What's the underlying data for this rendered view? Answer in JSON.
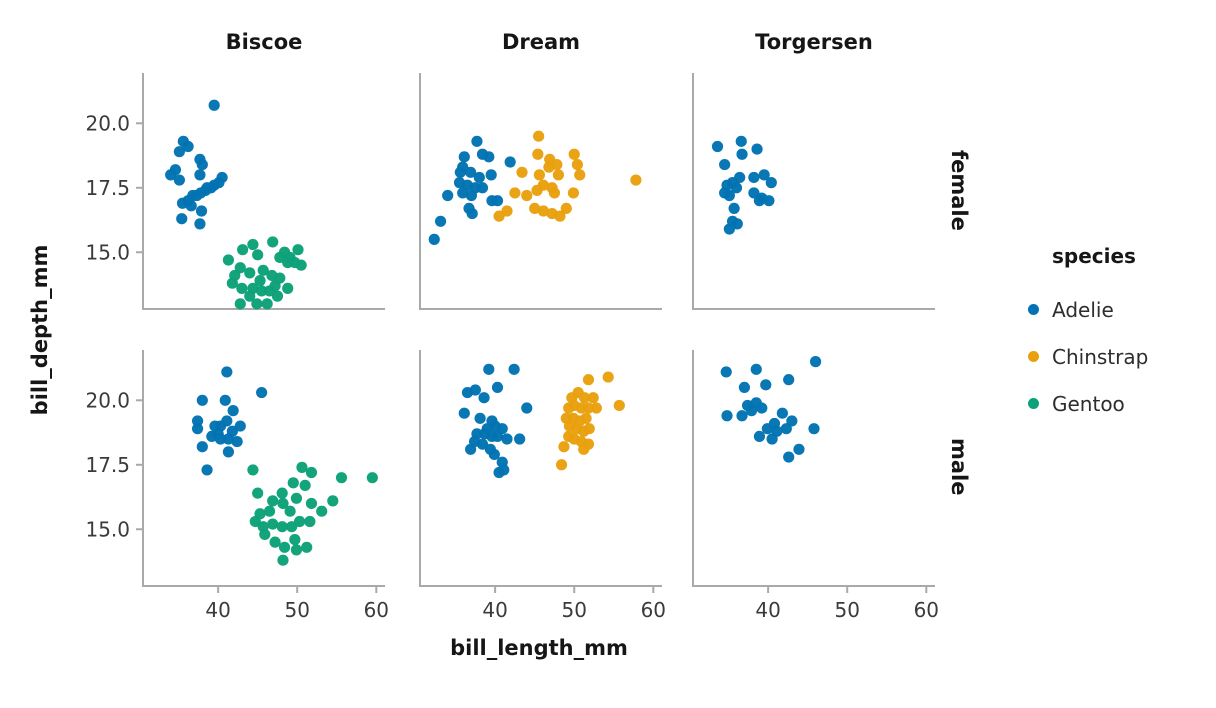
{
  "chart_data": {
    "type": "scatter",
    "title": "",
    "xlabel": "bill_length_mm",
    "ylabel": "bill_depth_mm",
    "facet_columns": [
      "Biscoe",
      "Dream",
      "Torgersen"
    ],
    "facet_rows": [
      "female",
      "male"
    ],
    "x_ticks": [
      40,
      50,
      60
    ],
    "x_tick_labels": [
      "40",
      "50",
      "60"
    ],
    "y_ticks": [
      20.0,
      17.5,
      15.0
    ],
    "y_tick_labels": [
      "20.0",
      "17.5",
      "15.0"
    ],
    "xlim": [
      30.5,
      61.1
    ],
    "ylim": [
      12.8,
      21.95
    ],
    "grid": false,
    "legend": {
      "title": "species",
      "position": "right",
      "entries": [
        {
          "label": "Adelie",
          "color": "#0173b2"
        },
        {
          "label": "Chinstrap",
          "color": "#e8a00d"
        },
        {
          "label": "Gentoo",
          "color": "#0ca178"
        }
      ]
    },
    "series": [
      {
        "facet_col": "Biscoe",
        "facet_row": "female",
        "species": "Adelie",
        "points": [
          [
            39.5,
            20.7
          ],
          [
            35.6,
            19.3
          ],
          [
            36.2,
            19.1
          ],
          [
            35.1,
            18.9
          ],
          [
            37.7,
            18.6
          ],
          [
            38.0,
            18.4
          ],
          [
            34.6,
            18.2
          ],
          [
            34.0,
            18.0
          ],
          [
            37.7,
            18.0
          ],
          [
            40.5,
            17.9
          ],
          [
            35.1,
            17.8
          ],
          [
            40.1,
            17.7
          ],
          [
            39.5,
            17.6
          ],
          [
            38.6,
            17.5
          ],
          [
            39.1,
            17.5
          ],
          [
            38.4,
            17.4
          ],
          [
            37.8,
            17.3
          ],
          [
            37.3,
            17.2
          ],
          [
            36.8,
            17.2
          ],
          [
            36.2,
            17.0
          ],
          [
            35.5,
            16.9
          ],
          [
            36.6,
            16.8
          ],
          [
            37.9,
            16.6
          ],
          [
            35.4,
            16.3
          ],
          [
            37.7,
            16.1
          ]
        ]
      },
      {
        "facet_col": "Biscoe",
        "facet_row": "female",
        "species": "Gentoo",
        "points": [
          [
            43.1,
            15.1
          ],
          [
            46.9,
            15.4
          ],
          [
            50.1,
            15.1
          ],
          [
            44.4,
            15.3
          ],
          [
            48.4,
            15.0
          ],
          [
            41.3,
            14.7
          ],
          [
            45.0,
            14.9
          ],
          [
            47.8,
            14.8
          ],
          [
            49.7,
            14.6
          ],
          [
            48.8,
            14.6
          ],
          [
            42.8,
            14.4
          ],
          [
            44.0,
            14.2
          ],
          [
            45.7,
            14.3
          ],
          [
            42.1,
            14.1
          ],
          [
            46.8,
            14.1
          ],
          [
            47.8,
            14.0
          ],
          [
            45.3,
            13.9
          ],
          [
            41.8,
            13.8
          ],
          [
            43.0,
            13.6
          ],
          [
            44.4,
            13.6
          ],
          [
            45.5,
            13.5
          ],
          [
            46.5,
            13.5
          ],
          [
            47.2,
            13.7
          ],
          [
            47.5,
            13.3
          ],
          [
            48.8,
            13.6
          ],
          [
            44.0,
            13.3
          ],
          [
            42.8,
            13.0
          ],
          [
            44.9,
            13.0
          ],
          [
            46.2,
            13.0
          ],
          [
            50.5,
            14.5
          ],
          [
            49.1,
            14.8
          ]
        ]
      },
      {
        "facet_col": "Dream",
        "facet_row": "female",
        "species": "Adelie",
        "points": [
          [
            37.7,
            19.3
          ],
          [
            36.1,
            18.7
          ],
          [
            38.4,
            18.8
          ],
          [
            39.2,
            18.7
          ],
          [
            35.9,
            18.3
          ],
          [
            35.6,
            18.1
          ],
          [
            36.9,
            18.1
          ],
          [
            38.0,
            17.9
          ],
          [
            39.5,
            18.0
          ],
          [
            35.5,
            17.7
          ],
          [
            36.5,
            17.6
          ],
          [
            37.5,
            17.5
          ],
          [
            38.4,
            17.5
          ],
          [
            35.9,
            17.3
          ],
          [
            37.0,
            17.2
          ],
          [
            39.6,
            17.0
          ],
          [
            40.3,
            17.0
          ],
          [
            36.7,
            16.7
          ],
          [
            37.1,
            16.5
          ],
          [
            34.0,
            17.2
          ],
          [
            33.1,
            16.2
          ],
          [
            32.3,
            15.5
          ],
          [
            41.9,
            18.5
          ]
        ]
      },
      {
        "facet_col": "Dream",
        "facet_row": "female",
        "species": "Chinstrap",
        "points": [
          [
            45.5,
            19.5
          ],
          [
            45.4,
            18.8
          ],
          [
            46.9,
            18.6
          ],
          [
            47.8,
            18.4
          ],
          [
            50.0,
            18.8
          ],
          [
            50.4,
            18.4
          ],
          [
            43.4,
            18.1
          ],
          [
            45.6,
            18.0
          ],
          [
            46.8,
            18.3
          ],
          [
            48.0,
            18.0
          ],
          [
            50.7,
            18.0
          ],
          [
            57.8,
            17.8
          ],
          [
            42.5,
            17.3
          ],
          [
            44.0,
            17.2
          ],
          [
            45.3,
            17.4
          ],
          [
            46.1,
            17.6
          ],
          [
            47.2,
            17.5
          ],
          [
            47.5,
            17.3
          ],
          [
            49.9,
            17.3
          ],
          [
            45.0,
            16.7
          ],
          [
            46.1,
            16.6
          ],
          [
            47.2,
            16.5
          ],
          [
            48.2,
            16.4
          ],
          [
            49.0,
            16.7
          ],
          [
            41.5,
            16.6
          ],
          [
            40.5,
            16.4
          ]
        ]
      },
      {
        "facet_col": "Torgersen",
        "facet_row": "female",
        "species": "Adelie",
        "points": [
          [
            33.6,
            19.1
          ],
          [
            36.6,
            19.3
          ],
          [
            36.7,
            18.8
          ],
          [
            38.6,
            19.0
          ],
          [
            34.5,
            18.4
          ],
          [
            36.4,
            17.9
          ],
          [
            38.2,
            17.9
          ],
          [
            39.5,
            18.0
          ],
          [
            40.4,
            17.7
          ],
          [
            34.8,
            17.6
          ],
          [
            35.5,
            17.7
          ],
          [
            36.0,
            17.5
          ],
          [
            34.5,
            17.3
          ],
          [
            35.1,
            17.2
          ],
          [
            38.2,
            17.3
          ],
          [
            39.2,
            17.1
          ],
          [
            40.1,
            17.0
          ],
          [
            35.7,
            16.7
          ],
          [
            38.9,
            17.0
          ],
          [
            35.5,
            16.2
          ],
          [
            36.1,
            16.1
          ],
          [
            35.1,
            15.9
          ]
        ]
      },
      {
        "facet_col": "Biscoe",
        "facet_row": "male",
        "species": "Adelie",
        "points": [
          [
            41.1,
            21.1
          ],
          [
            45.5,
            20.3
          ],
          [
            38.0,
            20.0
          ],
          [
            40.9,
            20.0
          ],
          [
            41.9,
            19.6
          ],
          [
            37.4,
            19.2
          ],
          [
            37.4,
            18.9
          ],
          [
            39.6,
            19.0
          ],
          [
            40.3,
            19.0
          ],
          [
            41.1,
            19.2
          ],
          [
            42.8,
            19.0
          ],
          [
            40.0,
            18.7
          ],
          [
            40.3,
            18.5
          ],
          [
            41.3,
            18.5
          ],
          [
            42.4,
            18.4
          ],
          [
            38.0,
            18.2
          ],
          [
            39.2,
            18.6
          ],
          [
            41.8,
            18.8
          ],
          [
            41.3,
            18.0
          ],
          [
            38.6,
            17.3
          ]
        ]
      },
      {
        "facet_col": "Biscoe",
        "facet_row": "male",
        "species": "Gentoo",
        "points": [
          [
            44.4,
            17.3
          ],
          [
            50.6,
            17.4
          ],
          [
            51.8,
            17.2
          ],
          [
            55.6,
            17.0
          ],
          [
            59.5,
            17.0
          ],
          [
            49.5,
            16.8
          ],
          [
            51.0,
            16.7
          ],
          [
            45.0,
            16.4
          ],
          [
            46.9,
            16.1
          ],
          [
            48.1,
            16.4
          ],
          [
            49.9,
            16.2
          ],
          [
            51.8,
            16.0
          ],
          [
            53.1,
            15.7
          ],
          [
            54.5,
            16.1
          ],
          [
            48.2,
            16.0
          ],
          [
            46.5,
            15.7
          ],
          [
            45.3,
            15.6
          ],
          [
            49.1,
            15.7
          ],
          [
            44.7,
            15.3
          ],
          [
            45.7,
            15.1
          ],
          [
            46.9,
            15.2
          ],
          [
            48.1,
            15.1
          ],
          [
            49.3,
            15.1
          ],
          [
            50.3,
            15.3
          ],
          [
            51.6,
            15.3
          ],
          [
            45.9,
            14.8
          ],
          [
            49.7,
            14.6
          ],
          [
            47.2,
            14.5
          ],
          [
            48.4,
            14.3
          ],
          [
            49.9,
            14.2
          ],
          [
            51.2,
            14.3
          ],
          [
            48.2,
            13.8
          ]
        ]
      },
      {
        "facet_col": "Dream",
        "facet_row": "male",
        "species": "Adelie",
        "points": [
          [
            39.2,
            21.2
          ],
          [
            42.4,
            21.2
          ],
          [
            36.5,
            20.3
          ],
          [
            37.5,
            20.4
          ],
          [
            38.6,
            20.1
          ],
          [
            40.3,
            20.5
          ],
          [
            44.0,
            19.7
          ],
          [
            36.1,
            19.5
          ],
          [
            38.1,
            19.3
          ],
          [
            39.6,
            19.2
          ],
          [
            40.0,
            19.0
          ],
          [
            39.0,
            18.9
          ],
          [
            40.9,
            18.9
          ],
          [
            37.7,
            18.7
          ],
          [
            38.7,
            18.7
          ],
          [
            39.6,
            18.6
          ],
          [
            40.3,
            18.6
          ],
          [
            41.5,
            18.5
          ],
          [
            43.1,
            18.5
          ],
          [
            37.4,
            18.4
          ],
          [
            38.4,
            18.3
          ],
          [
            39.4,
            18.1
          ],
          [
            36.9,
            18.1
          ],
          [
            39.9,
            17.9
          ],
          [
            40.9,
            17.6
          ],
          [
            40.5,
            17.2
          ],
          [
            41.1,
            17.3
          ]
        ]
      },
      {
        "facet_col": "Dream",
        "facet_row": "male",
        "species": "Chinstrap",
        "points": [
          [
            51.8,
            20.8
          ],
          [
            54.3,
            20.9
          ],
          [
            55.7,
            19.8
          ],
          [
            49.7,
            20.1
          ],
          [
            50.5,
            20.3
          ],
          [
            51.3,
            20.1
          ],
          [
            52.4,
            20.1
          ],
          [
            49.3,
            19.7
          ],
          [
            50.0,
            19.8
          ],
          [
            50.9,
            19.7
          ],
          [
            51.8,
            19.7
          ],
          [
            52.8,
            19.7
          ],
          [
            49.0,
            19.3
          ],
          [
            49.9,
            19.3
          ],
          [
            50.7,
            19.2
          ],
          [
            51.5,
            19.3
          ],
          [
            49.4,
            19.0
          ],
          [
            50.3,
            18.9
          ],
          [
            51.2,
            18.8
          ],
          [
            51.9,
            18.9
          ],
          [
            49.3,
            18.6
          ],
          [
            50.0,
            18.5
          ],
          [
            50.9,
            18.4
          ],
          [
            51.8,
            18.3
          ],
          [
            48.7,
            18.2
          ],
          [
            51.2,
            18.1
          ],
          [
            48.4,
            17.5
          ]
        ]
      },
      {
        "facet_col": "Torgersen",
        "facet_row": "male",
        "species": "Adelie",
        "points": [
          [
            34.7,
            21.1
          ],
          [
            38.5,
            21.2
          ],
          [
            46.0,
            21.5
          ],
          [
            37.0,
            20.5
          ],
          [
            39.7,
            20.6
          ],
          [
            42.6,
            20.8
          ],
          [
            37.4,
            19.8
          ],
          [
            38.5,
            19.9
          ],
          [
            39.2,
            19.7
          ],
          [
            34.8,
            19.4
          ],
          [
            36.7,
            19.4
          ],
          [
            37.9,
            19.6
          ],
          [
            41.8,
            19.5
          ],
          [
            43.0,
            19.2
          ],
          [
            40.8,
            19.1
          ],
          [
            39.9,
            18.9
          ],
          [
            41.1,
            18.8
          ],
          [
            42.3,
            18.9
          ],
          [
            38.9,
            18.6
          ],
          [
            40.5,
            18.5
          ],
          [
            45.8,
            18.9
          ],
          [
            43.9,
            18.1
          ],
          [
            42.6,
            17.8
          ]
        ]
      }
    ]
  }
}
